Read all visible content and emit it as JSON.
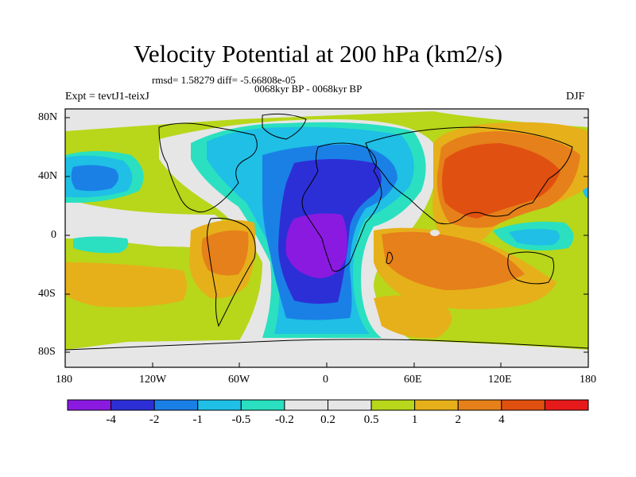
{
  "title": "Velocity Potential at 200 hPa (km2/s)",
  "stats_line": "rmsd= 1.58279 diff= -5.66808e-05",
  "period_line": "0068kyr BP - 0068kyr BP",
  "experiment_label": "Expt = tevtJ1-teixJ",
  "season_label": "DJF",
  "y_axis_labels": [
    "80N",
    "40N",
    "0",
    "40S",
    "80S"
  ],
  "x_axis_labels": [
    "180",
    "120W",
    "60W",
    "0",
    "60E",
    "120E",
    "180"
  ],
  "colorbar": {
    "colors": [
      "#8a1ae0",
      "#2d2fd6",
      "#1a80e6",
      "#1fbfe6",
      "#2ae0c0",
      "#e6e6e6",
      "#e6e6e6",
      "#b8d61a",
      "#e6b01a",
      "#e6801a",
      "#e05010",
      "#e61a1a"
    ],
    "tick_labels": [
      "-4",
      "-2",
      "-1",
      "-0.5",
      "-0.2",
      "0.2",
      "0.5",
      "1",
      "2",
      "4"
    ]
  },
  "palette": {
    "v_neg4": "#8a1ae0",
    "v_neg2": "#2d2fd6",
    "v_neg1": "#1a80e6",
    "v_neg05": "#1fbfe6",
    "v_neg02": "#2ae0c0",
    "v_zero": "#e6e6e6",
    "v_pos02": "#b8d61a",
    "v_pos05": "#e6b01a",
    "v_pos1": "#e6801a",
    "v_pos2": "#e05010"
  }
}
